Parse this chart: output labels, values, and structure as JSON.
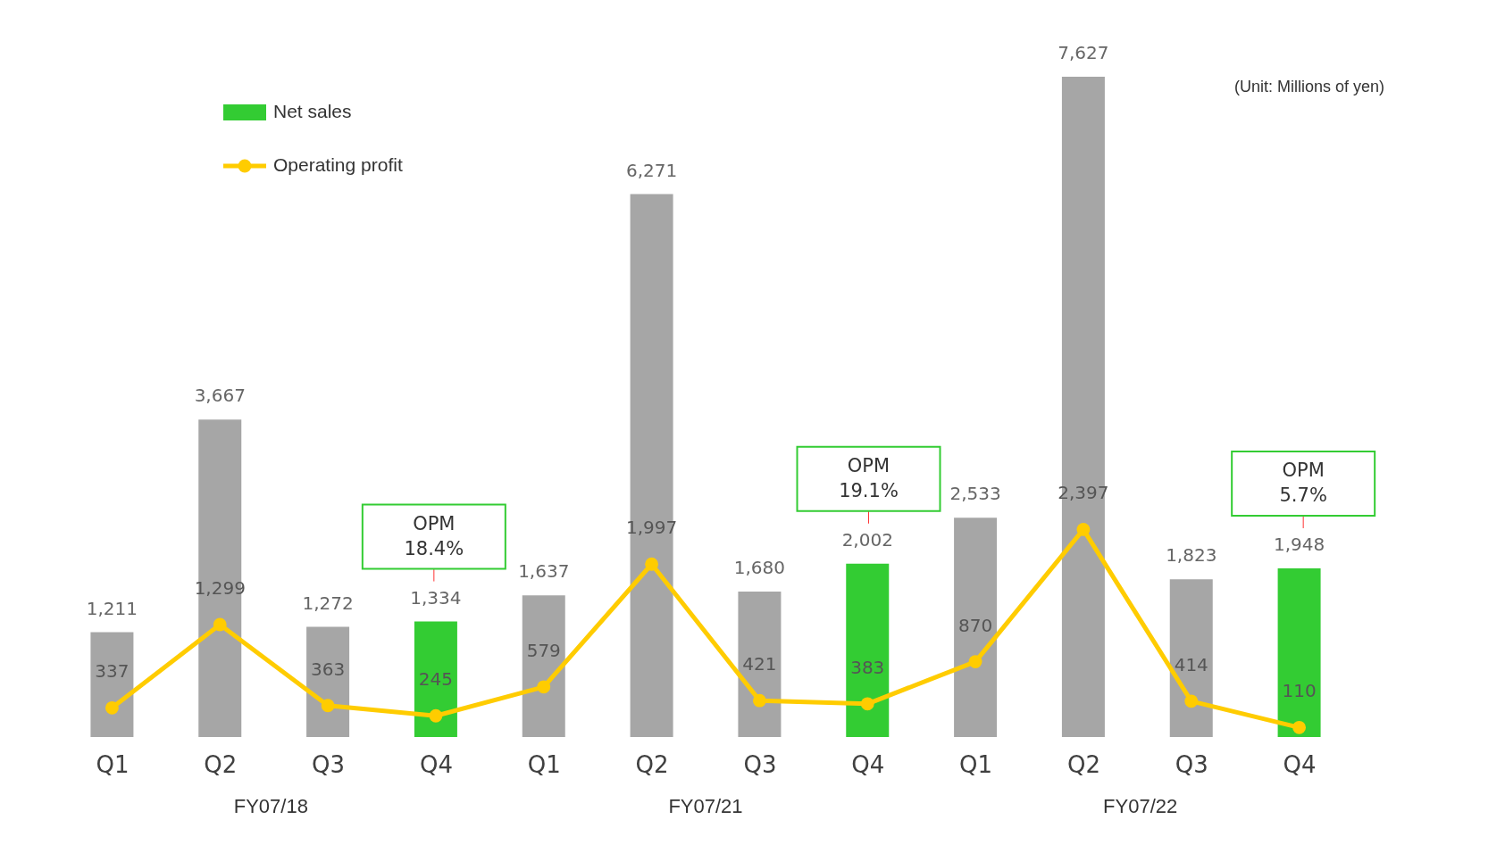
{
  "chart_data": {
    "type": "bar",
    "categories": [
      "Q1",
      "Q2",
      "Q3",
      "Q4",
      "Q1",
      "Q2",
      "Q3",
      "Q4",
      "Q1",
      "Q2",
      "Q3",
      "Q4"
    ],
    "series": [
      {
        "name": "Net sales",
        "colors": [
          "#a6a6a6",
          "#a6a6a6",
          "#a6a6a6",
          "#33cc33",
          "#a6a6a6",
          "#a6a6a6",
          "#a6a6a6",
          "#33cc33",
          "#a6a6a6",
          "#a6a6a6",
          "#a6a6a6",
          "#33cc33"
        ],
        "color": "#33cc33",
        "values": [
          1211,
          3667,
          1272,
          1334,
          1637,
          6271,
          1680,
          2002,
          2533,
          7627,
          1823,
          1948
        ],
        "value_labels": [
          "1,211",
          "3,667",
          "1,272",
          "1,334",
          "1,637",
          "6,271",
          "1,680",
          "2,002",
          "2,533",
          "7,627",
          "1,823",
          "1,948"
        ]
      },
      {
        "name": "Operating profit",
        "type": "line",
        "color": "#ffcc00",
        "values": [
          337,
          1299,
          363,
          245,
          579,
          1997,
          421,
          383,
          870,
          2397,
          414,
          110
        ],
        "value_labels": [
          "337",
          "1,299",
          "363",
          "245",
          "579",
          "1,997",
          "421",
          "383",
          "870",
          "2,397",
          "414",
          "110"
        ]
      }
    ],
    "marker": "circle",
    "legend": "top left",
    "annotations": [
      "(Unit: Millions of yen)",
      "FY07/18",
      "FY07/21",
      "FY07/22",
      "OPM\n18.4%",
      "OPM\n19.1%",
      "OPM\n5.7%"
    ]
  }
}
